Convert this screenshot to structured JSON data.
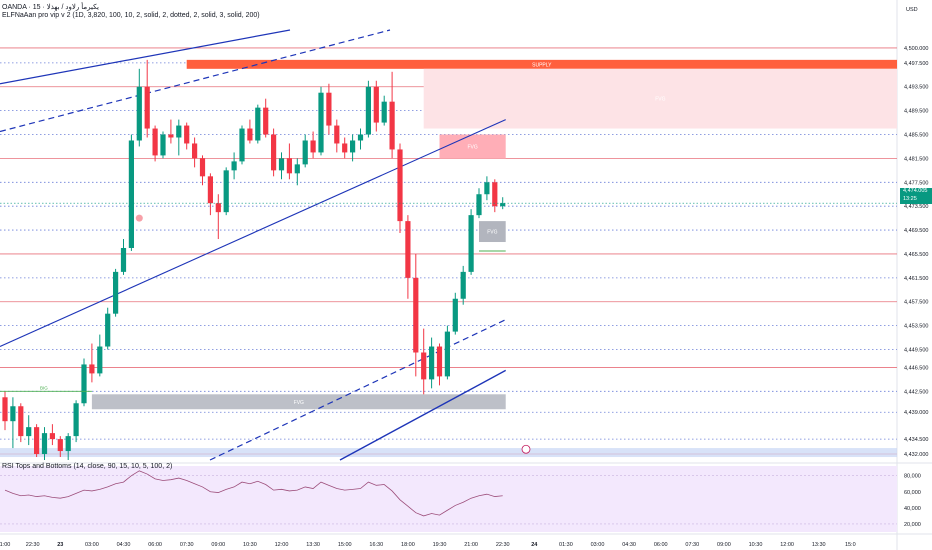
{
  "header": {
    "symbol_line": "OANDA · 15 · يكيرمأ رلاود / بهذلا",
    "indicator_line": "ELFNaAan pro vip v 2 (1D, 3,820, 100, 10, 2, solid, 2, dotted, 2, solid, 3, solid, 200)"
  },
  "currency_label": "USD",
  "last_price": {
    "value": "4,474.005",
    "countdown": "13:25",
    "color": "#089981"
  },
  "rsi_title": "RSI Tops and Bottoms (14, close, 90, 15, 10, 5, 100, 2)",
  "colors": {
    "up": "#089981",
    "down": "#f23645",
    "channel": "#1e35b8",
    "hline": "#e8707b",
    "dotline": "#6b7fd8",
    "supply": "#ff5f3d",
    "zone_pink": "#fde3e6",
    "fvg_red": "#ff9aa5",
    "fvg_gray": "#b2b5be",
    "rsi_bg": "#f3e8fd",
    "rsi_line": "#9c4d7a"
  },
  "chart_data": {
    "type": "candlestick",
    "title": "",
    "y_axis": {
      "min": 4431.0,
      "max": 4503.0,
      "ticks": [
        "4,500.000",
        "4,497.500",
        "4,493.500",
        "4,489.500",
        "4,485.500",
        "4,481.500",
        "4,477.500",
        "4,473.500",
        "4,469.500",
        "4,465.500",
        "4,461.500",
        "4,457.500",
        "4,453.500",
        "4,449.500",
        "4,446.500",
        "4,442.500",
        "4,439.000",
        "4,434.500",
        "4,432.000"
      ],
      "tick_values": [
        4500.0,
        4497.5,
        4493.5,
        4489.5,
        4485.5,
        4481.5,
        4477.5,
        4473.5,
        4469.5,
        4465.5,
        4461.5,
        4457.5,
        4453.5,
        4449.5,
        4446.5,
        4442.5,
        4439.0,
        4434.5,
        4432.0
      ]
    },
    "x_axis": {
      "labels": [
        "1:00",
        "22:30",
        "23",
        "03:00",
        "04:30",
        "06:00",
        "07:30",
        "09:00",
        "10:30",
        "12:00",
        "13:30",
        "15:00",
        "16:30",
        "18:00",
        "19:30",
        "21:00",
        "22:30",
        "24",
        "01:30",
        "03:00",
        "04:30",
        "06:00",
        "07:30",
        "09:00",
        "10:30",
        "12:00",
        "13:30",
        "15:0"
      ],
      "label_index": [
        0,
        3.5,
        7,
        11,
        15,
        19,
        23,
        27,
        31,
        35,
        39,
        43,
        47,
        51,
        55,
        59,
        63,
        67,
        71,
        75,
        79,
        83,
        87,
        91,
        95,
        99,
        103,
        107
      ],
      "bold_labels": [
        "23",
        "24"
      ]
    },
    "candles": [
      [
        4441.5,
        4442.5,
        4436.0,
        4437.5
      ],
      [
        4437.5,
        4441.5,
        4433.0,
        4440.0
      ],
      [
        4440.0,
        4440.5,
        4434.0,
        4435.0
      ],
      [
        4435.0,
        4438.5,
        4433.5,
        4436.5
      ],
      [
        4436.5,
        4437.0,
        4431.5,
        4432.0
      ],
      [
        4432.0,
        4436.5,
        4431.0,
        4435.5
      ],
      [
        4435.5,
        4437.0,
        4433.5,
        4434.5
      ],
      [
        4434.5,
        4435.0,
        4431.5,
        4432.5
      ],
      [
        4432.5,
        4435.5,
        4431.0,
        4435.0
      ],
      [
        4435.0,
        4441.0,
        4434.0,
        4440.5
      ],
      [
        4440.5,
        4448.0,
        4440.0,
        4447.0
      ],
      [
        4447.0,
        4450.5,
        4444.0,
        4445.5
      ],
      [
        4445.5,
        4452.0,
        4445.0,
        4450.0
      ],
      [
        4450.0,
        4456.5,
        4449.5,
        4455.5
      ],
      [
        4455.5,
        4463.0,
        4455.0,
        4462.5
      ],
      [
        4462.5,
        4468.0,
        4462.0,
        4466.5
      ],
      [
        4466.5,
        4485.5,
        4466.0,
        4484.5
      ],
      [
        4484.5,
        4496.5,
        4483.5,
        4493.5
      ],
      [
        4493.5,
        4498.0,
        4485.0,
        4486.5
      ],
      [
        4486.5,
        4487.0,
        4481.0,
        4482.0
      ],
      [
        4482.0,
        4486.0,
        4481.5,
        4485.5
      ],
      [
        4485.5,
        4488.0,
        4484.0,
        4485.0
      ],
      [
        4485.0,
        4488.0,
        4482.0,
        4487.0
      ],
      [
        4487.0,
        4487.5,
        4483.0,
        4484.0
      ],
      [
        4484.0,
        4485.0,
        4480.0,
        4481.5
      ],
      [
        4481.5,
        4482.0,
        4477.0,
        4478.5
      ],
      [
        4478.5,
        4479.0,
        4472.0,
        4474.0
      ],
      [
        4474.0,
        4475.5,
        4468.0,
        4472.5
      ],
      [
        4472.5,
        4480.0,
        4472.0,
        4479.5
      ],
      [
        4479.5,
        4482.5,
        4478.0,
        4481.0
      ],
      [
        4481.0,
        4487.0,
        4480.5,
        4486.5
      ],
      [
        4486.5,
        4488.0,
        4484.0,
        4484.5
      ],
      [
        4484.5,
        4490.5,
        4484.0,
        4490.0
      ],
      [
        4490.0,
        4491.5,
        4485.0,
        4485.5
      ],
      [
        4485.5,
        4486.5,
        4478.5,
        4479.5
      ],
      [
        4479.5,
        4482.5,
        4478.0,
        4481.5
      ],
      [
        4481.5,
        4484.0,
        4478.0,
        4479.0
      ],
      [
        4479.0,
        4481.5,
        4477.0,
        4480.5
      ],
      [
        4480.5,
        4485.5,
        4480.0,
        4484.5
      ],
      [
        4484.5,
        4486.0,
        4481.5,
        4482.5
      ],
      [
        4482.5,
        4493.5,
        4482.0,
        4492.5
      ],
      [
        4492.5,
        4494.0,
        4485.5,
        4487.0
      ],
      [
        4487.0,
        4488.0,
        4482.5,
        4484.0
      ],
      [
        4484.0,
        4485.0,
        4481.5,
        4482.5
      ],
      [
        4482.5,
        4485.5,
        4481.0,
        4484.5
      ],
      [
        4484.5,
        4486.5,
        4483.0,
        4485.5
      ],
      [
        4485.5,
        4494.5,
        4485.0,
        4493.5
      ],
      [
        4493.5,
        4494.5,
        4486.0,
        4487.5
      ],
      [
        4487.5,
        4492.0,
        4487.0,
        4491.0
      ],
      [
        4491.0,
        4496.0,
        4481.5,
        4483.0
      ],
      [
        4483.0,
        4484.0,
        4469.0,
        4471.0
      ],
      [
        4471.0,
        4472.0,
        4458.0,
        4461.5
      ],
      [
        4461.5,
        4465.5,
        4445.0,
        4449.0
      ],
      [
        4449.0,
        4453.0,
        4442.0,
        4444.5
      ],
      [
        4444.5,
        4451.5,
        4443.0,
        4450.0
      ],
      [
        4450.0,
        4450.5,
        4443.5,
        4445.0
      ],
      [
        4445.0,
        4453.5,
        4444.5,
        4452.5
      ],
      [
        4452.5,
        4459.0,
        4452.0,
        4458.0
      ],
      [
        4458.0,
        4463.5,
        4457.0,
        4462.5
      ],
      [
        4462.5,
        4473.0,
        4462.0,
        4472.0
      ],
      [
        4472.0,
        4476.5,
        4471.5,
        4475.5
      ],
      [
        4475.5,
        4478.5,
        4474.5,
        4477.5
      ],
      [
        4477.5,
        4478.0,
        4472.5,
        4473.5
      ],
      [
        4473.5,
        4475.0,
        4473.0,
        4474.0
      ]
    ],
    "annotation": {
      "label": "FVG",
      "value": ""
    },
    "rsi": {
      "title": "RSI Tops and Bottoms (14, close, 90, 15, 10, 5, 100, 2)",
      "y_ticks": [
        "80,000",
        "60,000",
        "40,000",
        "20,000"
      ],
      "y_tick_values": [
        80,
        60,
        40,
        20
      ],
      "range": [
        10,
        92
      ],
      "values": [
        62,
        58,
        55,
        56,
        54,
        55,
        53,
        52,
        54,
        58,
        62,
        61,
        63,
        66,
        70,
        72,
        80,
        86,
        82,
        76,
        74,
        75,
        77,
        74,
        70,
        66,
        60,
        59,
        63,
        66,
        72,
        70,
        73,
        69,
        62,
        63,
        61,
        62,
        66,
        64,
        72,
        68,
        64,
        62,
        63,
        64,
        72,
        68,
        69,
        61,
        50,
        42,
        34,
        30,
        33,
        31,
        37,
        43,
        47,
        52,
        55,
        57,
        54,
        55
      ]
    },
    "zones": [
      {
        "type": "supply",
        "label": "SUPPLY",
        "low": 4496.5,
        "high": 4498.0
      },
      {
        "type": "fvg_pink",
        "label": "FVG",
        "low": 4486.5,
        "high": 4496.5
      },
      {
        "type": "fvg_red",
        "label": "FVG",
        "low": 4481.5,
        "high": 4485.5
      },
      {
        "type": "fvg_gray",
        "label": "FVG",
        "low": 4467.5,
        "high": 4471.0
      },
      {
        "type": "fvg_gray",
        "label": "FVG",
        "low": 4439.5,
        "high": 4442.0
      }
    ],
    "labels": {
      "big": "BIG",
      "rsi_bull": "BIG"
    }
  }
}
